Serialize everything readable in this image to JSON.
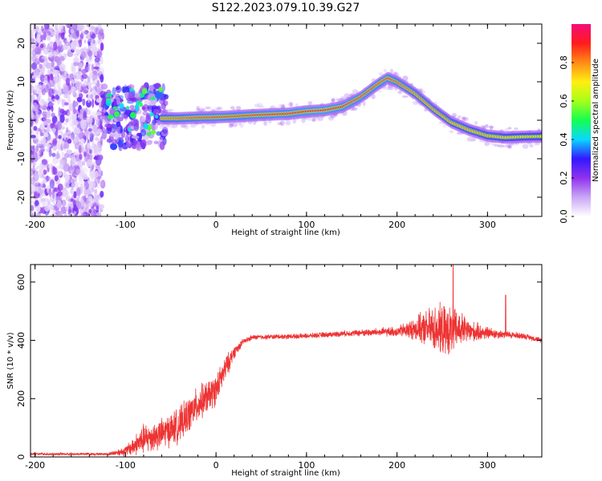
{
  "title": "S122.2023.079.10.39.G27",
  "chart_data": [
    {
      "type": "heatmap",
      "xlabel": "Height of straight line (km)",
      "ylabel": "Frequency (Hz)",
      "xlim": [
        -205,
        360
      ],
      "ylim": [
        -25,
        25
      ],
      "xticks": [
        "-200",
        "-100",
        "0",
        "100",
        "200",
        "300"
      ],
      "yticks": [
        "-20",
        "-10",
        "0",
        "10",
        "20"
      ],
      "colorbar": {
        "label": "Normalized spectral amplitude",
        "range": [
          0,
          1
        ],
        "ticks": [
          "0.0",
          "0.2",
          "0.4",
          "0.6",
          "0.8"
        ]
      },
      "ridge": {
        "x": [
          -60,
          -40,
          -20,
          0,
          20,
          40,
          60,
          80,
          100,
          120,
          140,
          160,
          180,
          190,
          200,
          220,
          240,
          260,
          280,
          300,
          320,
          340,
          360
        ],
        "y": [
          0.5,
          0.5,
          0.7,
          0.8,
          1.0,
          1.3,
          1.5,
          1.7,
          2.3,
          2.6,
          3.5,
          6.0,
          9.5,
          11.0,
          10.0,
          7.0,
          3.0,
          -0.5,
          -2.5,
          -4.0,
          -4.5,
          -4.3,
          -4.2
        ],
        "amplitude": [
          0.6,
          0.7,
          0.8,
          0.85,
          0.8,
          0.85,
          0.9,
          0.9,
          0.95,
          1.0,
          0.9,
          0.85,
          0.8,
          0.85,
          0.75,
          0.6,
          0.55,
          0.5,
          0.5,
          0.45,
          0.35,
          0.3,
          0.3
        ]
      },
      "noise_region_x": [
        -205,
        -125
      ],
      "scattered_blobs_x": [
        -125,
        -55
      ]
    },
    {
      "type": "line",
      "xlabel": "Height of straight line (km)",
      "ylabel": "SNR (10 * v/v)",
      "xlim": [
        -205,
        360
      ],
      "ylim": [
        0,
        660
      ],
      "xticks": [
        "-200",
        "-100",
        "0",
        "100",
        "200",
        "300"
      ],
      "yticks": [
        "0",
        "200",
        "400",
        "600"
      ],
      "color": "#ee3333",
      "envelope": {
        "x": [
          -205,
          -120,
          -100,
          -80,
          -60,
          -40,
          -20,
          0,
          10,
          20,
          30,
          40,
          60,
          100,
          150,
          200,
          220,
          240,
          250,
          260,
          270,
          280,
          300,
          320,
          340,
          360
        ],
        "y": [
          10,
          10,
          20,
          60,
          80,
          110,
          180,
          230,
          300,
          360,
          395,
          410,
          412,
          415,
          425,
          430,
          440,
          440,
          435,
          430,
          440,
          430,
          425,
          420,
          415,
          400
        ],
        "jitter": [
          5,
          5,
          20,
          60,
          60,
          70,
          70,
          60,
          50,
          25,
          12,
          10,
          10,
          10,
          12,
          20,
          45,
          90,
          100,
          95,
          70,
          45,
          25,
          15,
          12,
          10
        ]
      },
      "spikes": [
        {
          "x": 262,
          "y": 660
        },
        {
          "x": 320,
          "y": 555
        }
      ]
    }
  ],
  "colors": {
    "colormap": [
      "#ffffff",
      "#c9a6f5",
      "#8f32ec",
      "#3318ff",
      "#0ad7ff",
      "#14ff50",
      "#a6ff19",
      "#ffee10",
      "#ff8a18",
      "#ff1c1c",
      "#f50a7c"
    ]
  }
}
